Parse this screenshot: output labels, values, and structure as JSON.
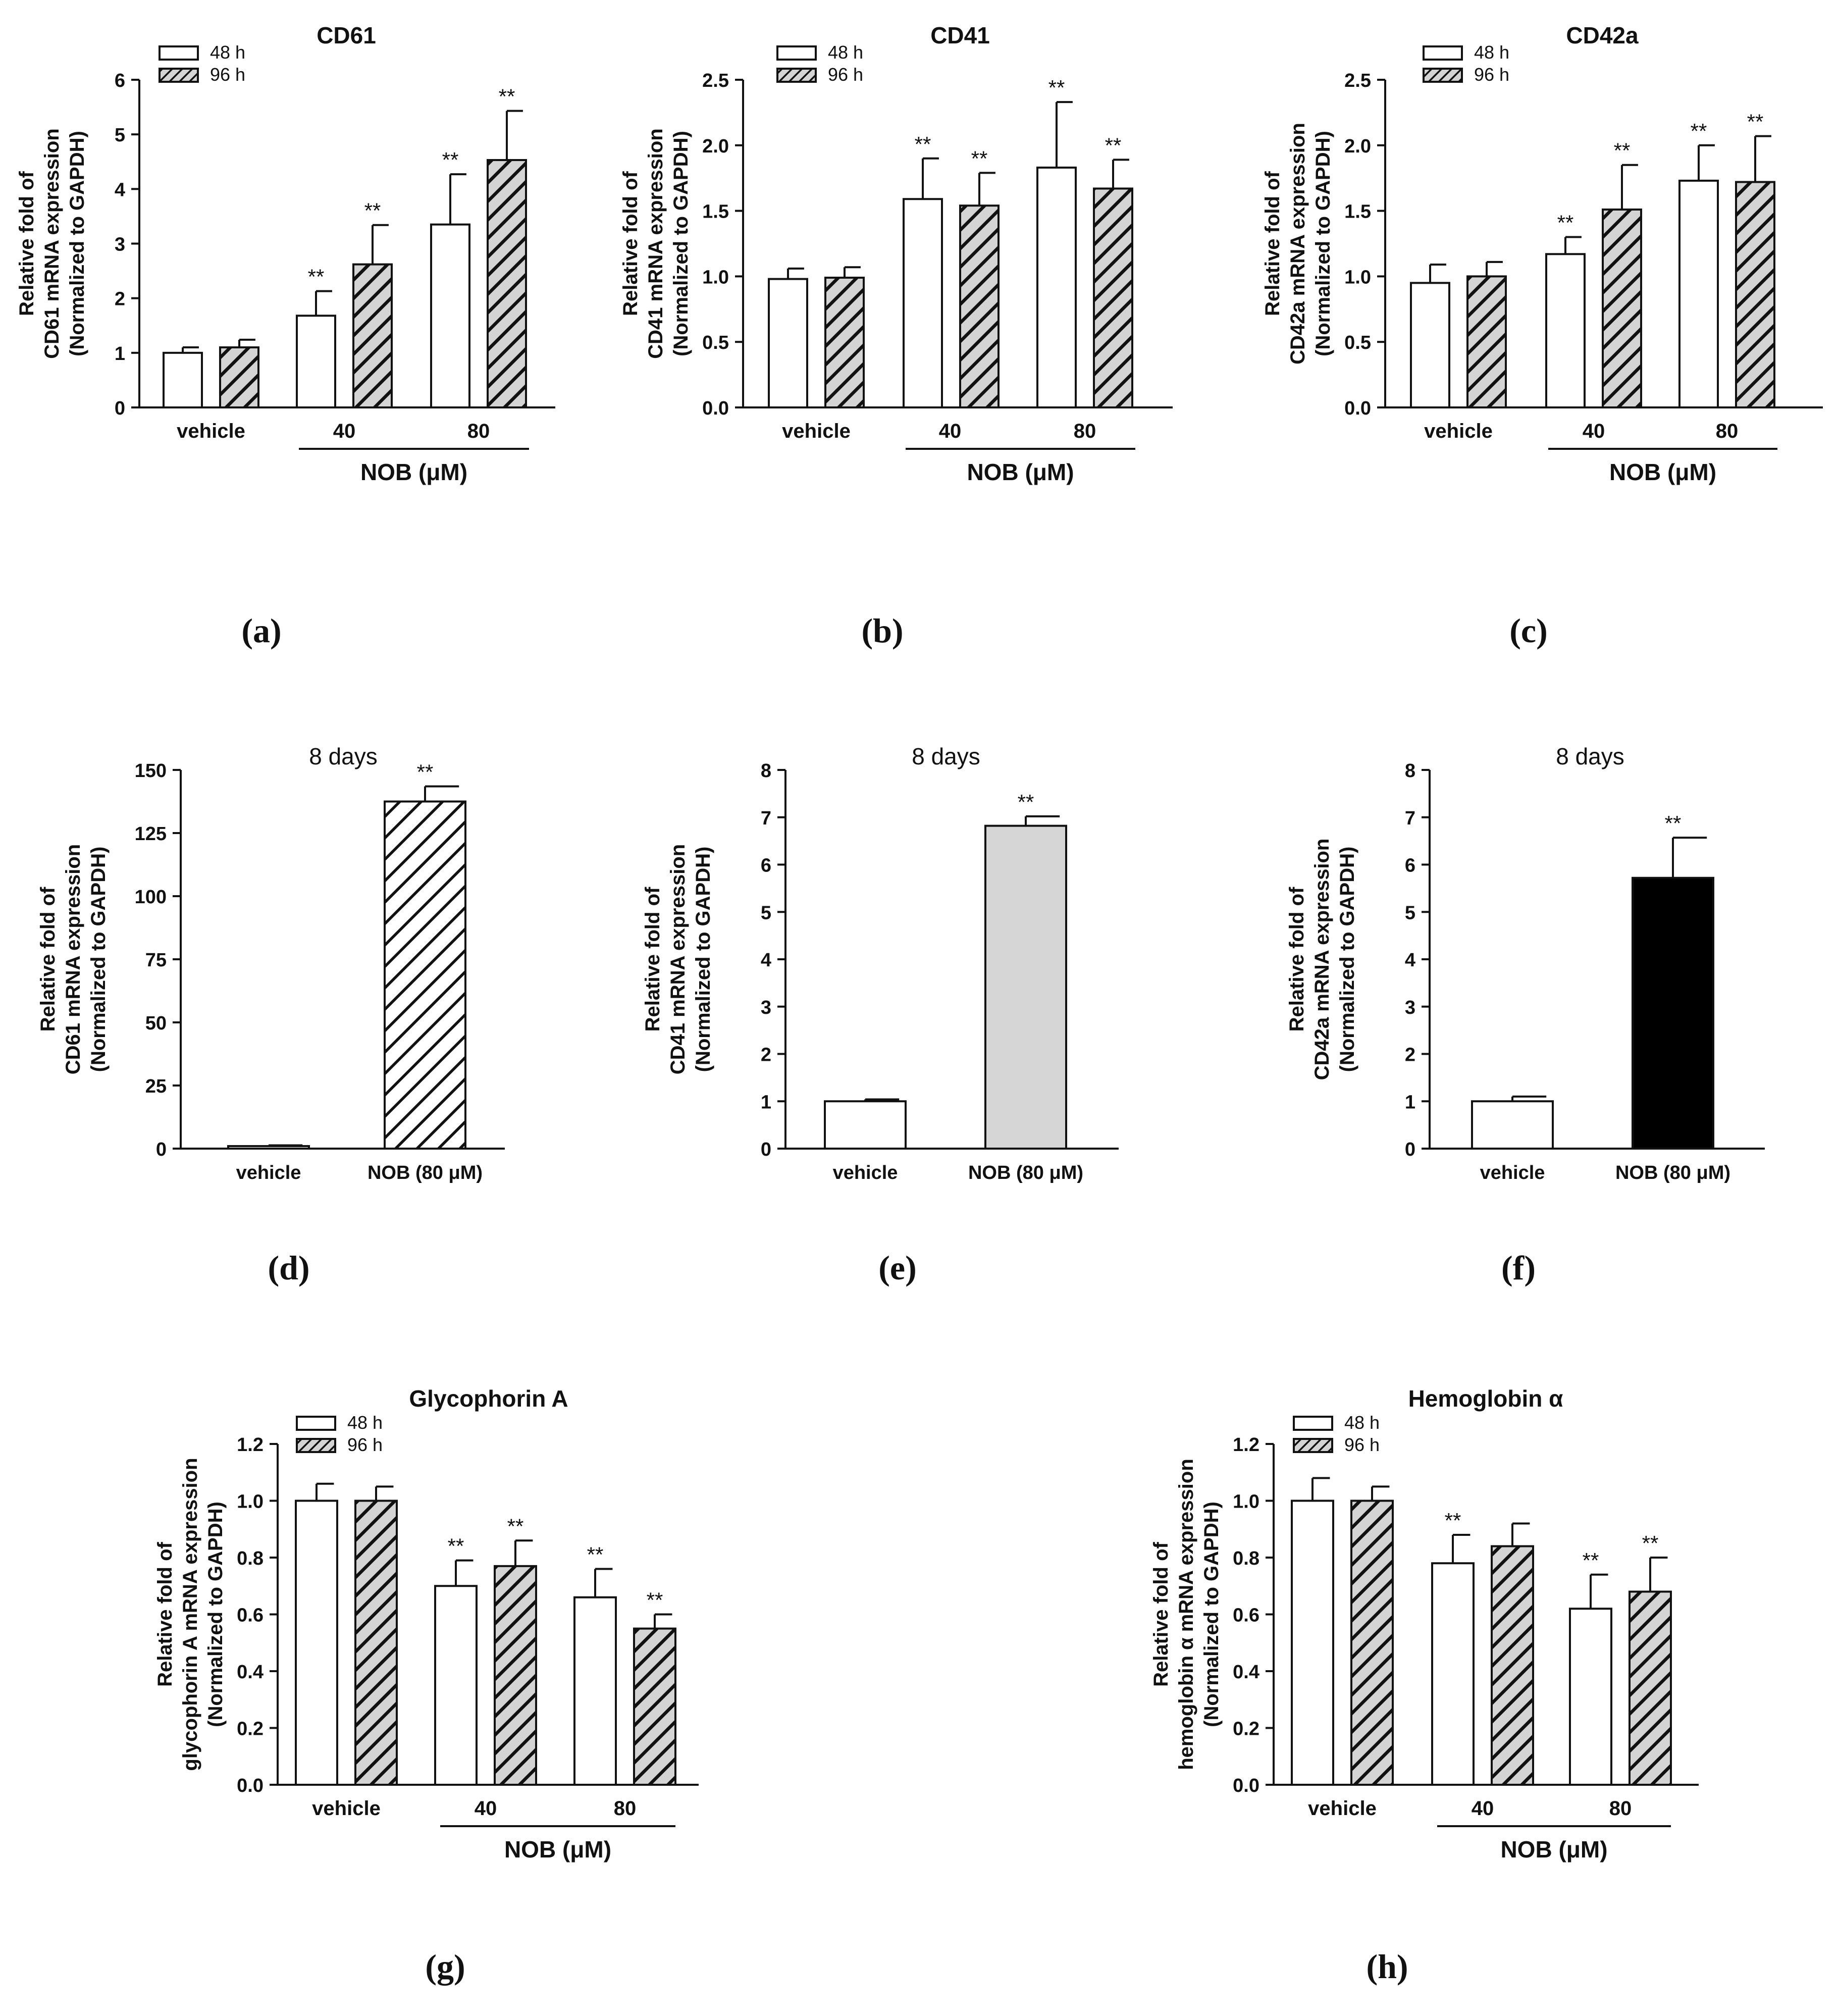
{
  "panel_labels": [
    "(a)",
    "(b)",
    "(c)",
    "(d)",
    "(e)",
    "(f)",
    "(g)",
    "(h)"
  ],
  "chart_data": [
    {
      "id": "a",
      "type": "bar",
      "title": "CD61",
      "ylabel_lines": [
        "Relative fold of",
        "CD61 mRNA expression",
        "(Normalized to GAPDH)"
      ],
      "categories": [
        "vehicle",
        "40",
        "80"
      ],
      "group_label": "NOB (μM)",
      "legend": [
        "48 h",
        "96 h"
      ],
      "ylim": [
        0,
        6
      ],
      "yticks": [
        "0",
        "1",
        "2",
        "3",
        "4",
        "5",
        "6"
      ],
      "series": [
        {
          "name": "48 h",
          "values": [
            1.0,
            1.68,
            3.35
          ],
          "errors": [
            0.1,
            0.45,
            0.92
          ],
          "sig": [
            "",
            "**",
            "**"
          ]
        },
        {
          "name": "96 h",
          "values": [
            1.1,
            2.62,
            4.53
          ],
          "errors": [
            0.14,
            0.72,
            0.9
          ],
          "sig": [
            "",
            "**",
            "**"
          ]
        }
      ]
    },
    {
      "id": "b",
      "type": "bar",
      "title": "CD41",
      "ylabel_lines": [
        "Relative fold of",
        "CD41 mRNA expression",
        "(Normalized to GAPDH)"
      ],
      "categories": [
        "vehicle",
        "40",
        "80"
      ],
      "group_label": "NOB (μM)",
      "legend": [
        "48 h",
        "96 h"
      ],
      "ylim": [
        0,
        2.5
      ],
      "yticks": [
        "0.0",
        "0.5",
        "1.0",
        "1.5",
        "2.0",
        "2.5"
      ],
      "series": [
        {
          "name": "48 h",
          "values": [
            0.98,
            1.59,
            1.83
          ],
          "errors": [
            0.08,
            0.31,
            0.5
          ],
          "sig": [
            "",
            "**",
            "**"
          ]
        },
        {
          "name": "96 h",
          "values": [
            0.99,
            1.54,
            1.67
          ],
          "errors": [
            0.08,
            0.25,
            0.22
          ],
          "sig": [
            "",
            "**",
            "**"
          ]
        }
      ]
    },
    {
      "id": "c",
      "type": "bar",
      "title": "CD42a",
      "ylabel_lines": [
        "Relative fold of",
        "CD42a mRNA expression",
        "(Normalized to GAPDH)"
      ],
      "categories": [
        "vehicle",
        "40",
        "80"
      ],
      "group_label": "NOB (μM)",
      "legend": [
        "48 h",
        "96 h"
      ],
      "ylim": [
        0,
        2.5
      ],
      "yticks": [
        "0.0",
        "0.5",
        "1.0",
        "1.5",
        "2.0",
        "2.5"
      ],
      "series": [
        {
          "name": "48 h",
          "values": [
            0.95,
            1.17,
            1.73
          ],
          "errors": [
            0.14,
            0.13,
            0.27
          ],
          "sig": [
            "",
            "**",
            "**"
          ]
        },
        {
          "name": "96 h",
          "values": [
            1.0,
            1.51,
            1.72
          ],
          "errors": [
            0.11,
            0.34,
            0.35
          ],
          "sig": [
            "",
            "**",
            "**"
          ]
        }
      ]
    },
    {
      "id": "d",
      "type": "bar",
      "title": "8 days",
      "ylabel_lines": [
        "Relative fold of",
        "CD61 mRNA expression",
        "(Normalized to GAPDH)"
      ],
      "categories": [
        "vehicle",
        "NOB (80 μM)"
      ],
      "ylim": [
        0,
        150
      ],
      "yticks": [
        "0",
        "25",
        "50",
        "75",
        "100",
        "125",
        "150"
      ],
      "values": [
        1.0,
        137.5
      ],
      "errors": [
        0.3,
        6.0
      ],
      "sig": [
        "",
        "**"
      ],
      "fills": [
        "white",
        "hatch"
      ]
    },
    {
      "id": "e",
      "type": "bar",
      "title": "8 days",
      "ylabel_lines": [
        "Relative fold of",
        "CD41 mRNA expression",
        "(Normalized to GAPDH)"
      ],
      "categories": [
        "vehicle",
        "NOB (80 μM)"
      ],
      "ylim": [
        0,
        8
      ],
      "yticks": [
        "0",
        "1",
        "2",
        "3",
        "4",
        "5",
        "6",
        "7",
        "8"
      ],
      "values": [
        1.0,
        6.82
      ],
      "errors": [
        0.04,
        0.2
      ],
      "sig": [
        "",
        "**"
      ],
      "fills": [
        "white",
        "gray"
      ]
    },
    {
      "id": "f",
      "type": "bar",
      "title": "8 days",
      "ylabel_lines": [
        "Relative fold of",
        "CD42a mRNA expression",
        "(Normalized to GAPDH)"
      ],
      "categories": [
        "vehicle",
        "NOB (80 μM)"
      ],
      "ylim": [
        0,
        8
      ],
      "yticks": [
        "0",
        "1",
        "2",
        "3",
        "4",
        "5",
        "6",
        "7",
        "8"
      ],
      "values": [
        1.0,
        5.72
      ],
      "errors": [
        0.1,
        0.85
      ],
      "sig": [
        "",
        "**"
      ],
      "fills": [
        "white",
        "black"
      ]
    },
    {
      "id": "g",
      "type": "bar",
      "title": "Glycophorin A",
      "ylabel_lines": [
        "Relative fold of",
        "glycophorin A mRNA expression",
        "(Normalized to GAPDH)"
      ],
      "categories": [
        "vehicle",
        "40",
        "80"
      ],
      "group_label": "NOB (μM)",
      "legend": [
        "48 h",
        "96 h"
      ],
      "ylim": [
        0,
        1.2
      ],
      "yticks": [
        "0.0",
        "0.2",
        "0.4",
        "0.6",
        "0.8",
        "1.0",
        "1.2"
      ],
      "series": [
        {
          "name": "48 h",
          "values": [
            1.0,
            0.7,
            0.66
          ],
          "errors": [
            0.06,
            0.09,
            0.1
          ],
          "sig": [
            "",
            "**",
            "**"
          ]
        },
        {
          "name": "96 h",
          "values": [
            1.0,
            0.77,
            0.55
          ],
          "errors": [
            0.05,
            0.09,
            0.05
          ],
          "sig": [
            "",
            "**",
            "**"
          ]
        }
      ]
    },
    {
      "id": "h",
      "type": "bar",
      "title": "Hemoglobin α",
      "ylabel_lines": [
        "Relative fold of",
        "hemoglobin α mRNA expression",
        "(Normalized to GAPDH)"
      ],
      "categories": [
        "vehicle",
        "40",
        "80"
      ],
      "group_label": "NOB (μM)",
      "legend": [
        "48 h",
        "96 h"
      ],
      "ylim": [
        0,
        1.2
      ],
      "yticks": [
        "0.0",
        "0.2",
        "0.4",
        "0.6",
        "0.8",
        "1.0",
        "1.2"
      ],
      "series": [
        {
          "name": "48 h",
          "values": [
            1.0,
            0.78,
            0.62
          ],
          "errors": [
            0.08,
            0.1,
            0.12
          ],
          "sig": [
            "",
            "**",
            "**"
          ]
        },
        {
          "name": "96 h",
          "values": [
            1.0,
            0.84,
            0.68
          ],
          "errors": [
            0.05,
            0.08,
            0.12
          ],
          "sig": [
            "",
            "",
            "**"
          ]
        }
      ]
    }
  ]
}
